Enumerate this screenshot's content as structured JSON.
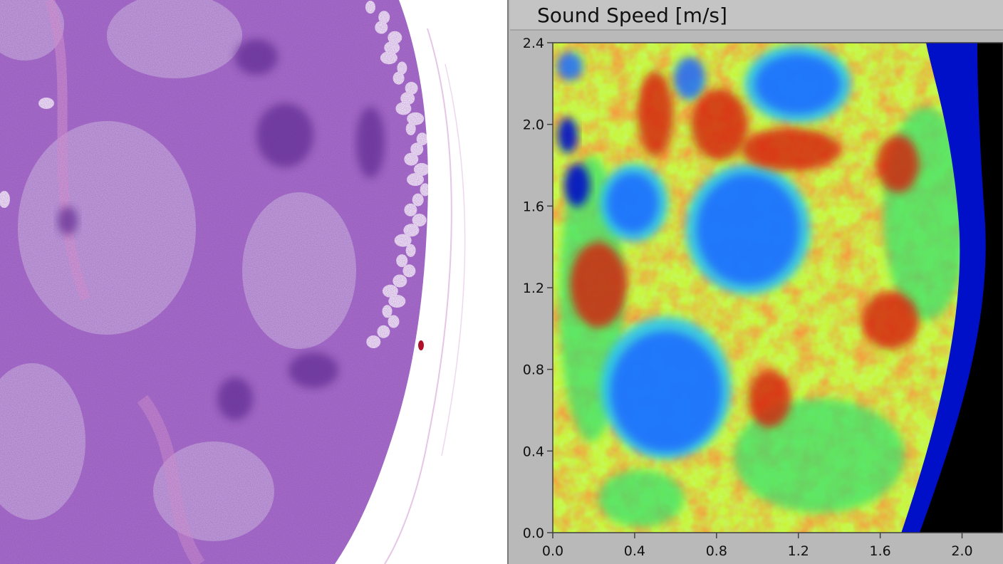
{
  "left_panel": {
    "image_kind": "histology-micrograph",
    "colors": {
      "tissue_base": "#a774c9",
      "tissue_dark": "#4e2483",
      "follicle": "#c9b2dd",
      "stroma_pink": "#e2a6d2",
      "background": "#ffffff"
    }
  },
  "right_panel": {
    "title": "Sound Speed [m/s]",
    "x_ticks": [
      "0.0",
      "0.4",
      "0.8",
      "1.2",
      "1.6",
      "2.0"
    ],
    "y_ticks": [
      "0.0",
      "0.4",
      "0.8",
      "1.2",
      "1.6",
      "2.0",
      "2.4"
    ],
    "x_range": [
      0.0,
      2.2
    ],
    "y_range": [
      0.0,
      2.4
    ],
    "colormap": [
      "#000000",
      "#0010c8",
      "#1a6bff",
      "#2fc6f0",
      "#35e070",
      "#c8f53c",
      "#ffe830",
      "#ff7a10",
      "#d61a08"
    ],
    "colors": {
      "panel_bg": "#b9b9b9",
      "frame": "#404040"
    }
  }
}
